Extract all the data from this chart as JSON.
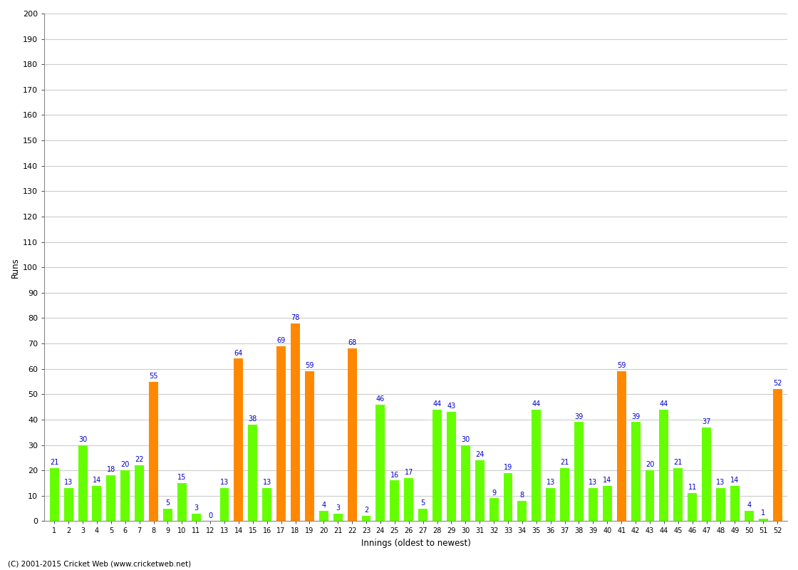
{
  "xlabel": "Innings (oldest to newest)",
  "ylabel": "Runs",
  "ylim": [
    0,
    200
  ],
  "yticks": [
    0,
    10,
    20,
    30,
    40,
    50,
    60,
    70,
    80,
    90,
    100,
    110,
    120,
    130,
    140,
    150,
    160,
    170,
    180,
    190,
    200
  ],
  "background_color": "#ffffff",
  "grid_color": "#cccccc",
  "bar_color_default": "#66ff00",
  "bar_color_highlight": "#ff8800",
  "label_color": "#0000cc",
  "footer": "(C) 2001-2015 Cricket Web (www.cricketweb.net)",
  "innings": [
    1,
    2,
    3,
    4,
    5,
    6,
    7,
    8,
    9,
    10,
    11,
    12,
    13,
    14,
    15,
    16,
    17,
    18,
    19,
    20,
    21,
    22,
    23,
    24,
    25,
    26,
    27,
    28,
    29,
    30,
    31,
    32,
    33,
    34,
    35,
    36,
    37,
    38,
    39,
    40,
    41,
    42,
    43,
    44,
    45,
    46,
    47,
    48,
    49,
    50,
    51,
    52
  ],
  "values": [
    21,
    13,
    30,
    14,
    18,
    20,
    22,
    55,
    5,
    15,
    3,
    0,
    13,
    64,
    38,
    13,
    69,
    78,
    59,
    4,
    3,
    68,
    2,
    46,
    16,
    17,
    5,
    44,
    43,
    30,
    24,
    9,
    19,
    8,
    44,
    13,
    21,
    39,
    13,
    14,
    59,
    39,
    20,
    44,
    21,
    11,
    37,
    13,
    14,
    4,
    1,
    52
  ],
  "highlights": [
    8,
    14,
    17,
    18,
    19,
    22,
    41,
    52
  ],
  "fig_width": 11.2,
  "fig_height": 8.0,
  "bar_width": 0.65
}
